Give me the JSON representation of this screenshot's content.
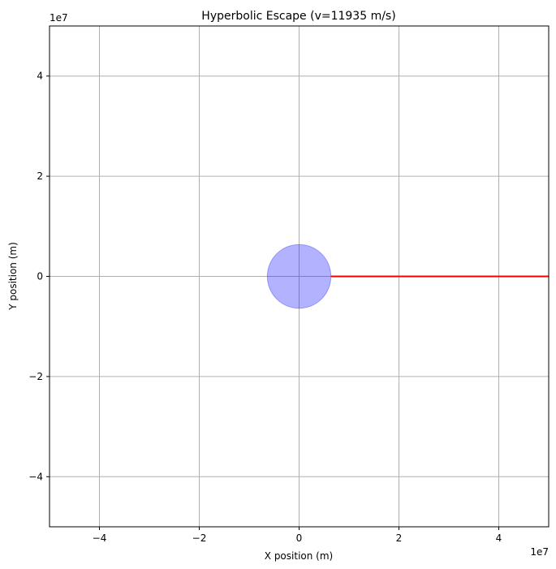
{
  "chart_data": {
    "type": "line",
    "title": "Hyperbolic Escape (v=11935 m/s)",
    "xlabel": "X position (m)",
    "ylabel": "Y position (m)",
    "xlim": [
      -50000000,
      50000000
    ],
    "ylim": [
      -50000000,
      50000000
    ],
    "x_exponent_label": "1e7",
    "y_exponent_label": "1e7",
    "x_ticks": [
      -40000000,
      -20000000,
      0,
      20000000,
      40000000
    ],
    "y_ticks": [
      -40000000,
      -20000000,
      0,
      20000000,
      40000000
    ],
    "x_tick_labels": [
      "−4",
      "−2",
      "0",
      "2",
      "4"
    ],
    "y_tick_labels": [
      "−4",
      "−2",
      "0",
      "2",
      "4"
    ],
    "grid": true,
    "planet": {
      "center": [
        0,
        0
      ],
      "radius": 6371000,
      "color": "#0000ff",
      "opacity": 0.3
    },
    "series": [
      {
        "color": "#ff0000",
        "x": [
          6371000,
          50000000
        ],
        "y": [
          0,
          0
        ]
      }
    ]
  }
}
